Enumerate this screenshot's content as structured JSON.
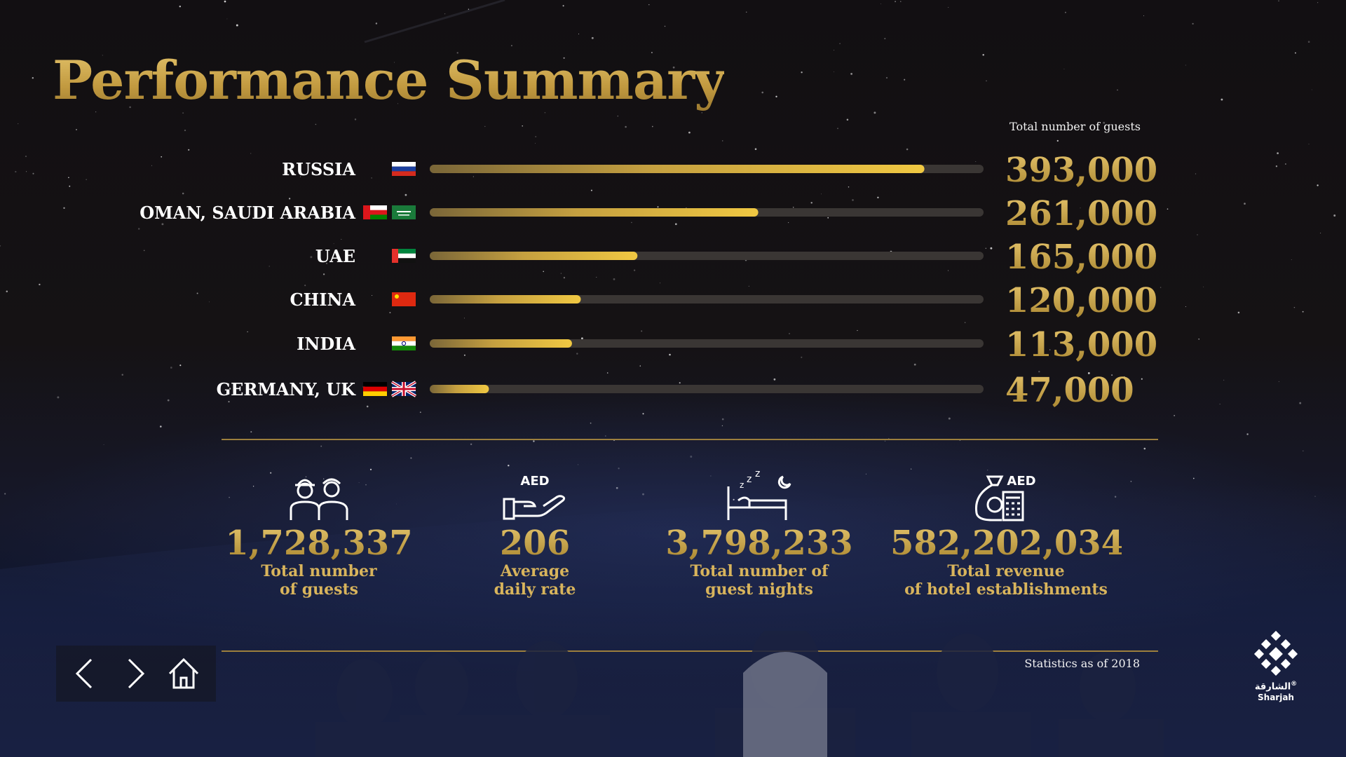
{
  "title": "Performance Summary",
  "chart_data": {
    "type": "bar",
    "orientation": "horizontal",
    "value_header": "Total number of guests",
    "categories": [
      "RUSSIA",
      "OMAN, SAUDI ARABIA",
      "UAE",
      "CHINA",
      "INDIA",
      "GERMANY, UK"
    ],
    "values": [
      393000,
      261000,
      165000,
      120000,
      113000,
      47000
    ],
    "value_labels": [
      "393,000",
      "261,000",
      "165,000",
      "120,000",
      "113,000",
      "47,000"
    ],
    "flags": [
      [
        "russia-flag"
      ],
      [
        "oman-flag",
        "saudi-arabia-flag"
      ],
      [
        "uae-flag"
      ],
      [
        "china-flag"
      ],
      [
        "india-flag"
      ],
      [
        "germany-flag",
        "uk-flag"
      ]
    ],
    "xlim": [
      0,
      440000
    ],
    "colors": {
      "bar": "#e8c24a",
      "track": "#3a3634",
      "value": "#c9a24a"
    }
  },
  "stats": [
    {
      "value": "1,728,337",
      "label": "Total number\nof guests",
      "icon": "guests-icon"
    },
    {
      "value": "206",
      "label": "Average\ndaily rate",
      "icon": "aed-hand-icon",
      "icon_text": "AED"
    },
    {
      "value": "3,798,233",
      "label": "Total number of\nguest nights",
      "icon": "bed-night-icon"
    },
    {
      "value": "582,202,034",
      "label": "Total revenue\nof hotel establishments",
      "icon": "revenue-bag-icon",
      "icon_text": "AED"
    }
  ],
  "footer": {
    "note": "Statistics as of 2018"
  },
  "nav": {
    "prev": "chevron-left-icon",
    "next": "chevron-right-icon",
    "home": "home-icon"
  },
  "logo": {
    "arabic": "الشارقة",
    "english": "Sharjah",
    "mark": "®"
  }
}
